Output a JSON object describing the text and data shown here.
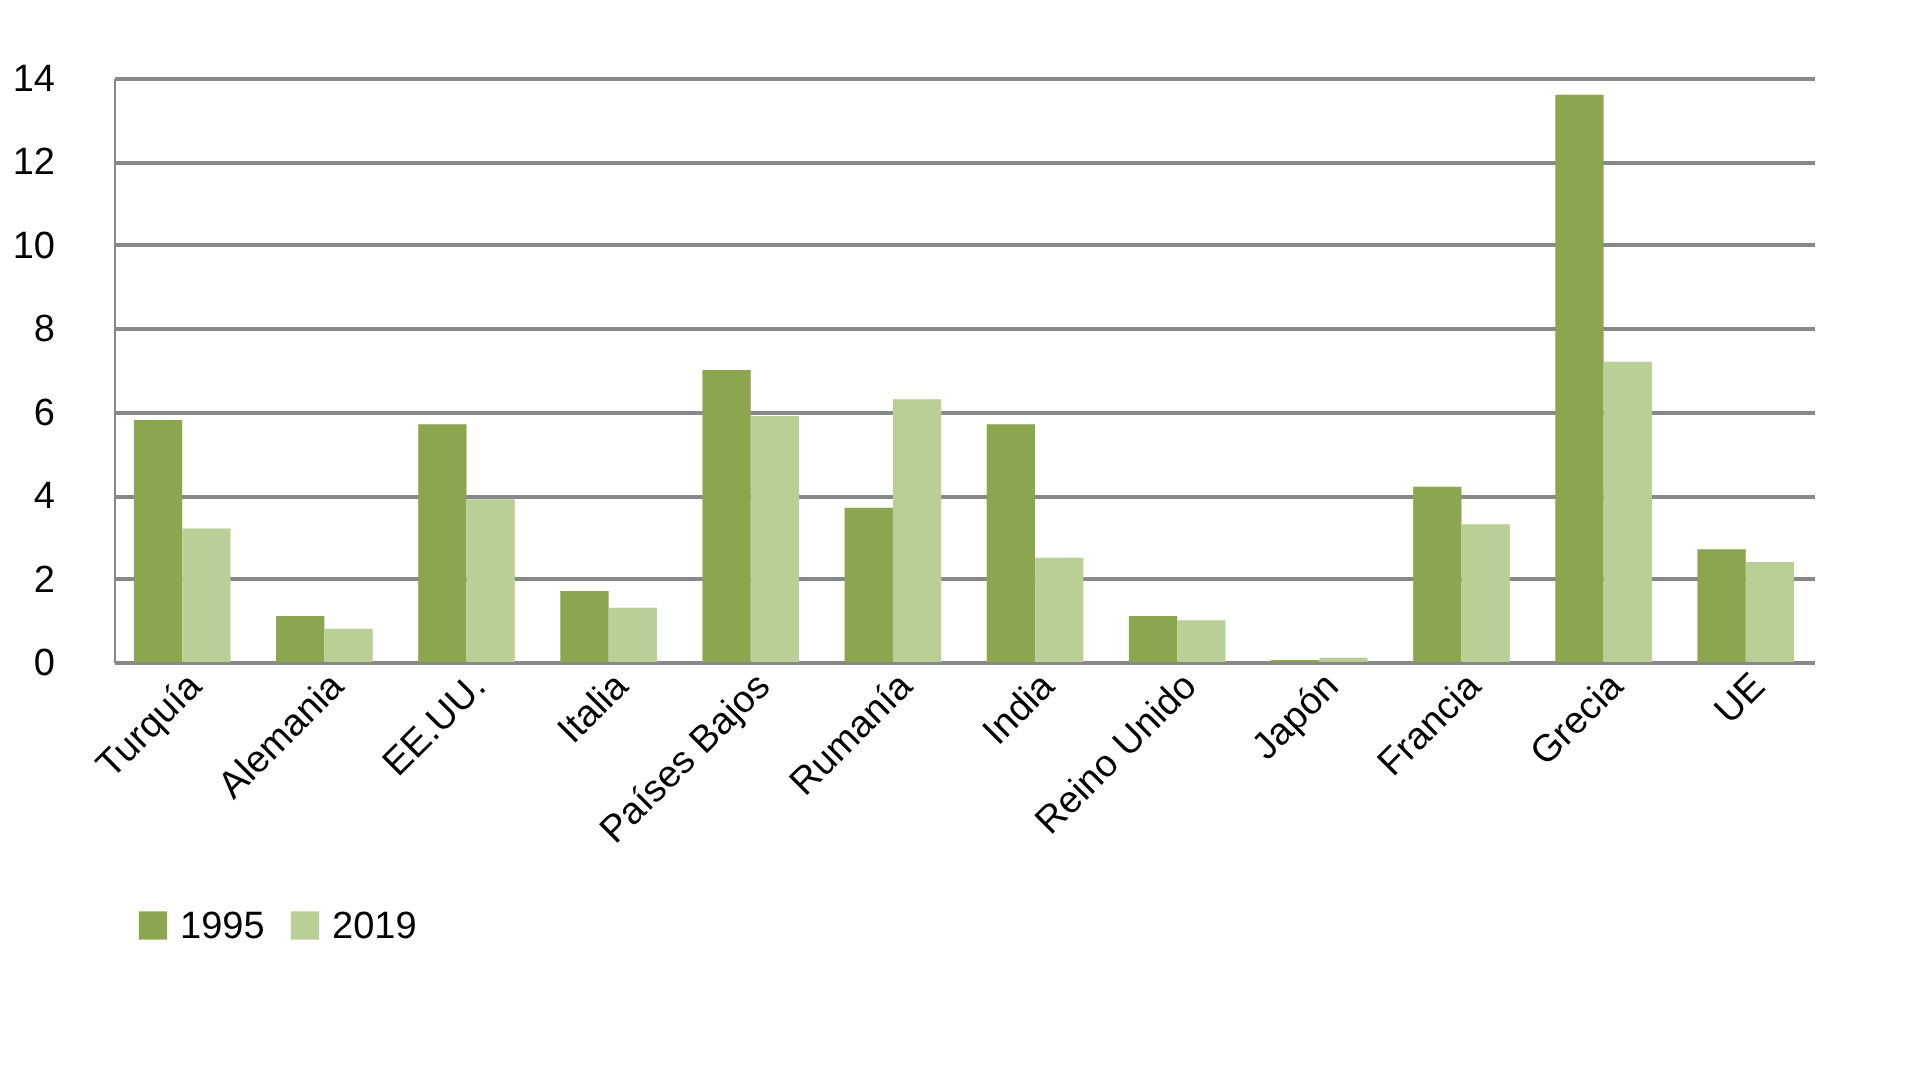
{
  "chart_data": {
    "type": "bar",
    "categories": [
      "Turquía",
      "Alemania",
      "EE.UU.",
      "Italia",
      "Países Bajos",
      "Rumanía",
      "India",
      "Reino Unido",
      "Japón",
      "Francia",
      "Grecia",
      "UE"
    ],
    "series": [
      {
        "name": "1995",
        "color": "#8ba64f",
        "values": [
          5.8,
          1.1,
          5.7,
          1.7,
          7.0,
          3.7,
          5.7,
          1.1,
          0.05,
          4.2,
          13.6,
          2.7
        ]
      },
      {
        "name": "2019",
        "color": "#b9cf95",
        "values": [
          3.2,
          0.8,
          3.9,
          1.3,
          5.9,
          6.3,
          2.5,
          1.0,
          0.1,
          3.3,
          7.2,
          2.4
        ]
      }
    ],
    "ylim": [
      0,
      14
    ],
    "yticks": [
      0,
      2,
      4,
      6,
      8,
      10,
      12,
      14
    ],
    "grid": "y",
    "legend": "bottom"
  }
}
